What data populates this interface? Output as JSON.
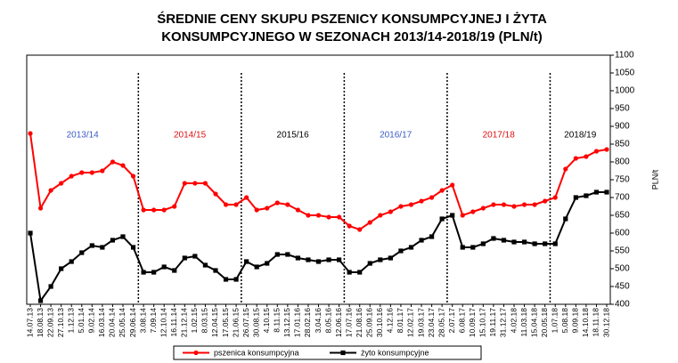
{
  "chart_data": {
    "type": "line",
    "title": [
      "ŚREDNIE CENY SKUPU PSZENICY KONSUMPCYJNEJ I ŻYTA",
      "KONSUMPCYJNEGO W SEZONACH 2013/14-2018/19 (PLN/t)"
    ],
    "y_axis_label": "PLN/t",
    "seasons": [
      {
        "label": "2013/14",
        "color": "#3b5bc8"
      },
      {
        "label": "2014/15",
        "color": "#e01010"
      },
      {
        "label": "2015/16",
        "color": "#000000"
      },
      {
        "label": "2016/17",
        "color": "#3b5bc8"
      },
      {
        "label": "2017/18",
        "color": "#e01010"
      },
      {
        "label": "2018/19",
        "color": "#000000"
      }
    ],
    "categories": [
      "14.07.13",
      "18.08.13",
      "22.09.13",
      "27.10.13",
      "1.12.13",
      "5.01.14",
      "9.02.14",
      "16.03.14",
      "20.04.14",
      "25.05.14",
      "29.06.14",
      "3.08.14",
      "7.09.14",
      "12.10.14",
      "16.11.14",
      "21.12.14",
      "1.02.15",
      "8.03.15",
      "12.04.15",
      "17.05.15",
      "21.06.15",
      "26.07.15",
      "30.08.15",
      "4.10.15",
      "8.11.15",
      "13.12.15",
      "17.01.16",
      "28.02.16",
      "3.04.16",
      "8.05.16",
      "12.06.16",
      "17.07.16",
      "21.08.16",
      "25.09.16",
      "30.10.16",
      "4.12.16",
      "8.01.17",
      "12.02.17",
      "19.03.17",
      "23.04.17",
      "28.05.17",
      "2.07.17",
      "6.08.17",
      "10.09.17",
      "15.10.17",
      "19.11.17",
      "31.12.17",
      "4.02.18",
      "11.03.18",
      "15.04.18",
      "20.05.18",
      "1.07.18",
      "5.08.18",
      "9.09.18",
      "14.10.18",
      "18.11.18",
      "30.12.18"
    ],
    "series": [
      {
        "name": "pszenica konsumpcyjna",
        "color": "#ff0000",
        "marker": "circle",
        "values": [
          880,
          670,
          720,
          740,
          760,
          770,
          770,
          775,
          800,
          790,
          760,
          665,
          665,
          665,
          675,
          740,
          740,
          740,
          710,
          680,
          680,
          700,
          665,
          670,
          685,
          680,
          665,
          650,
          650,
          645,
          645,
          620,
          610,
          630,
          650,
          660,
          675,
          680,
          690,
          700,
          720,
          735,
          650,
          660,
          670,
          680,
          680,
          675,
          680,
          680,
          690,
          700,
          780,
          810,
          815,
          830,
          835
        ]
      },
      {
        "name": "żyto konsumpcyjne",
        "color": "#000000",
        "marker": "square",
        "values": [
          600,
          410,
          450,
          500,
          520,
          545,
          565,
          560,
          580,
          590,
          560,
          490,
          490,
          505,
          495,
          530,
          535,
          510,
          495,
          470,
          470,
          520,
          505,
          515,
          540,
          540,
          530,
          525,
          520,
          525,
          525,
          490,
          490,
          515,
          525,
          530,
          550,
          560,
          580,
          590,
          640,
          650,
          560,
          560,
          570,
          585,
          580,
          575,
          575,
          570,
          570,
          570,
          640,
          700,
          705,
          715,
          715
        ]
      }
    ],
    "ylim": [
      400,
      1100
    ],
    "yticks": [
      400,
      450,
      500,
      550,
      600,
      650,
      700,
      750,
      800,
      850,
      900,
      950,
      1000,
      1050,
      1100
    ],
    "grid": false,
    "legend": "bottom"
  }
}
